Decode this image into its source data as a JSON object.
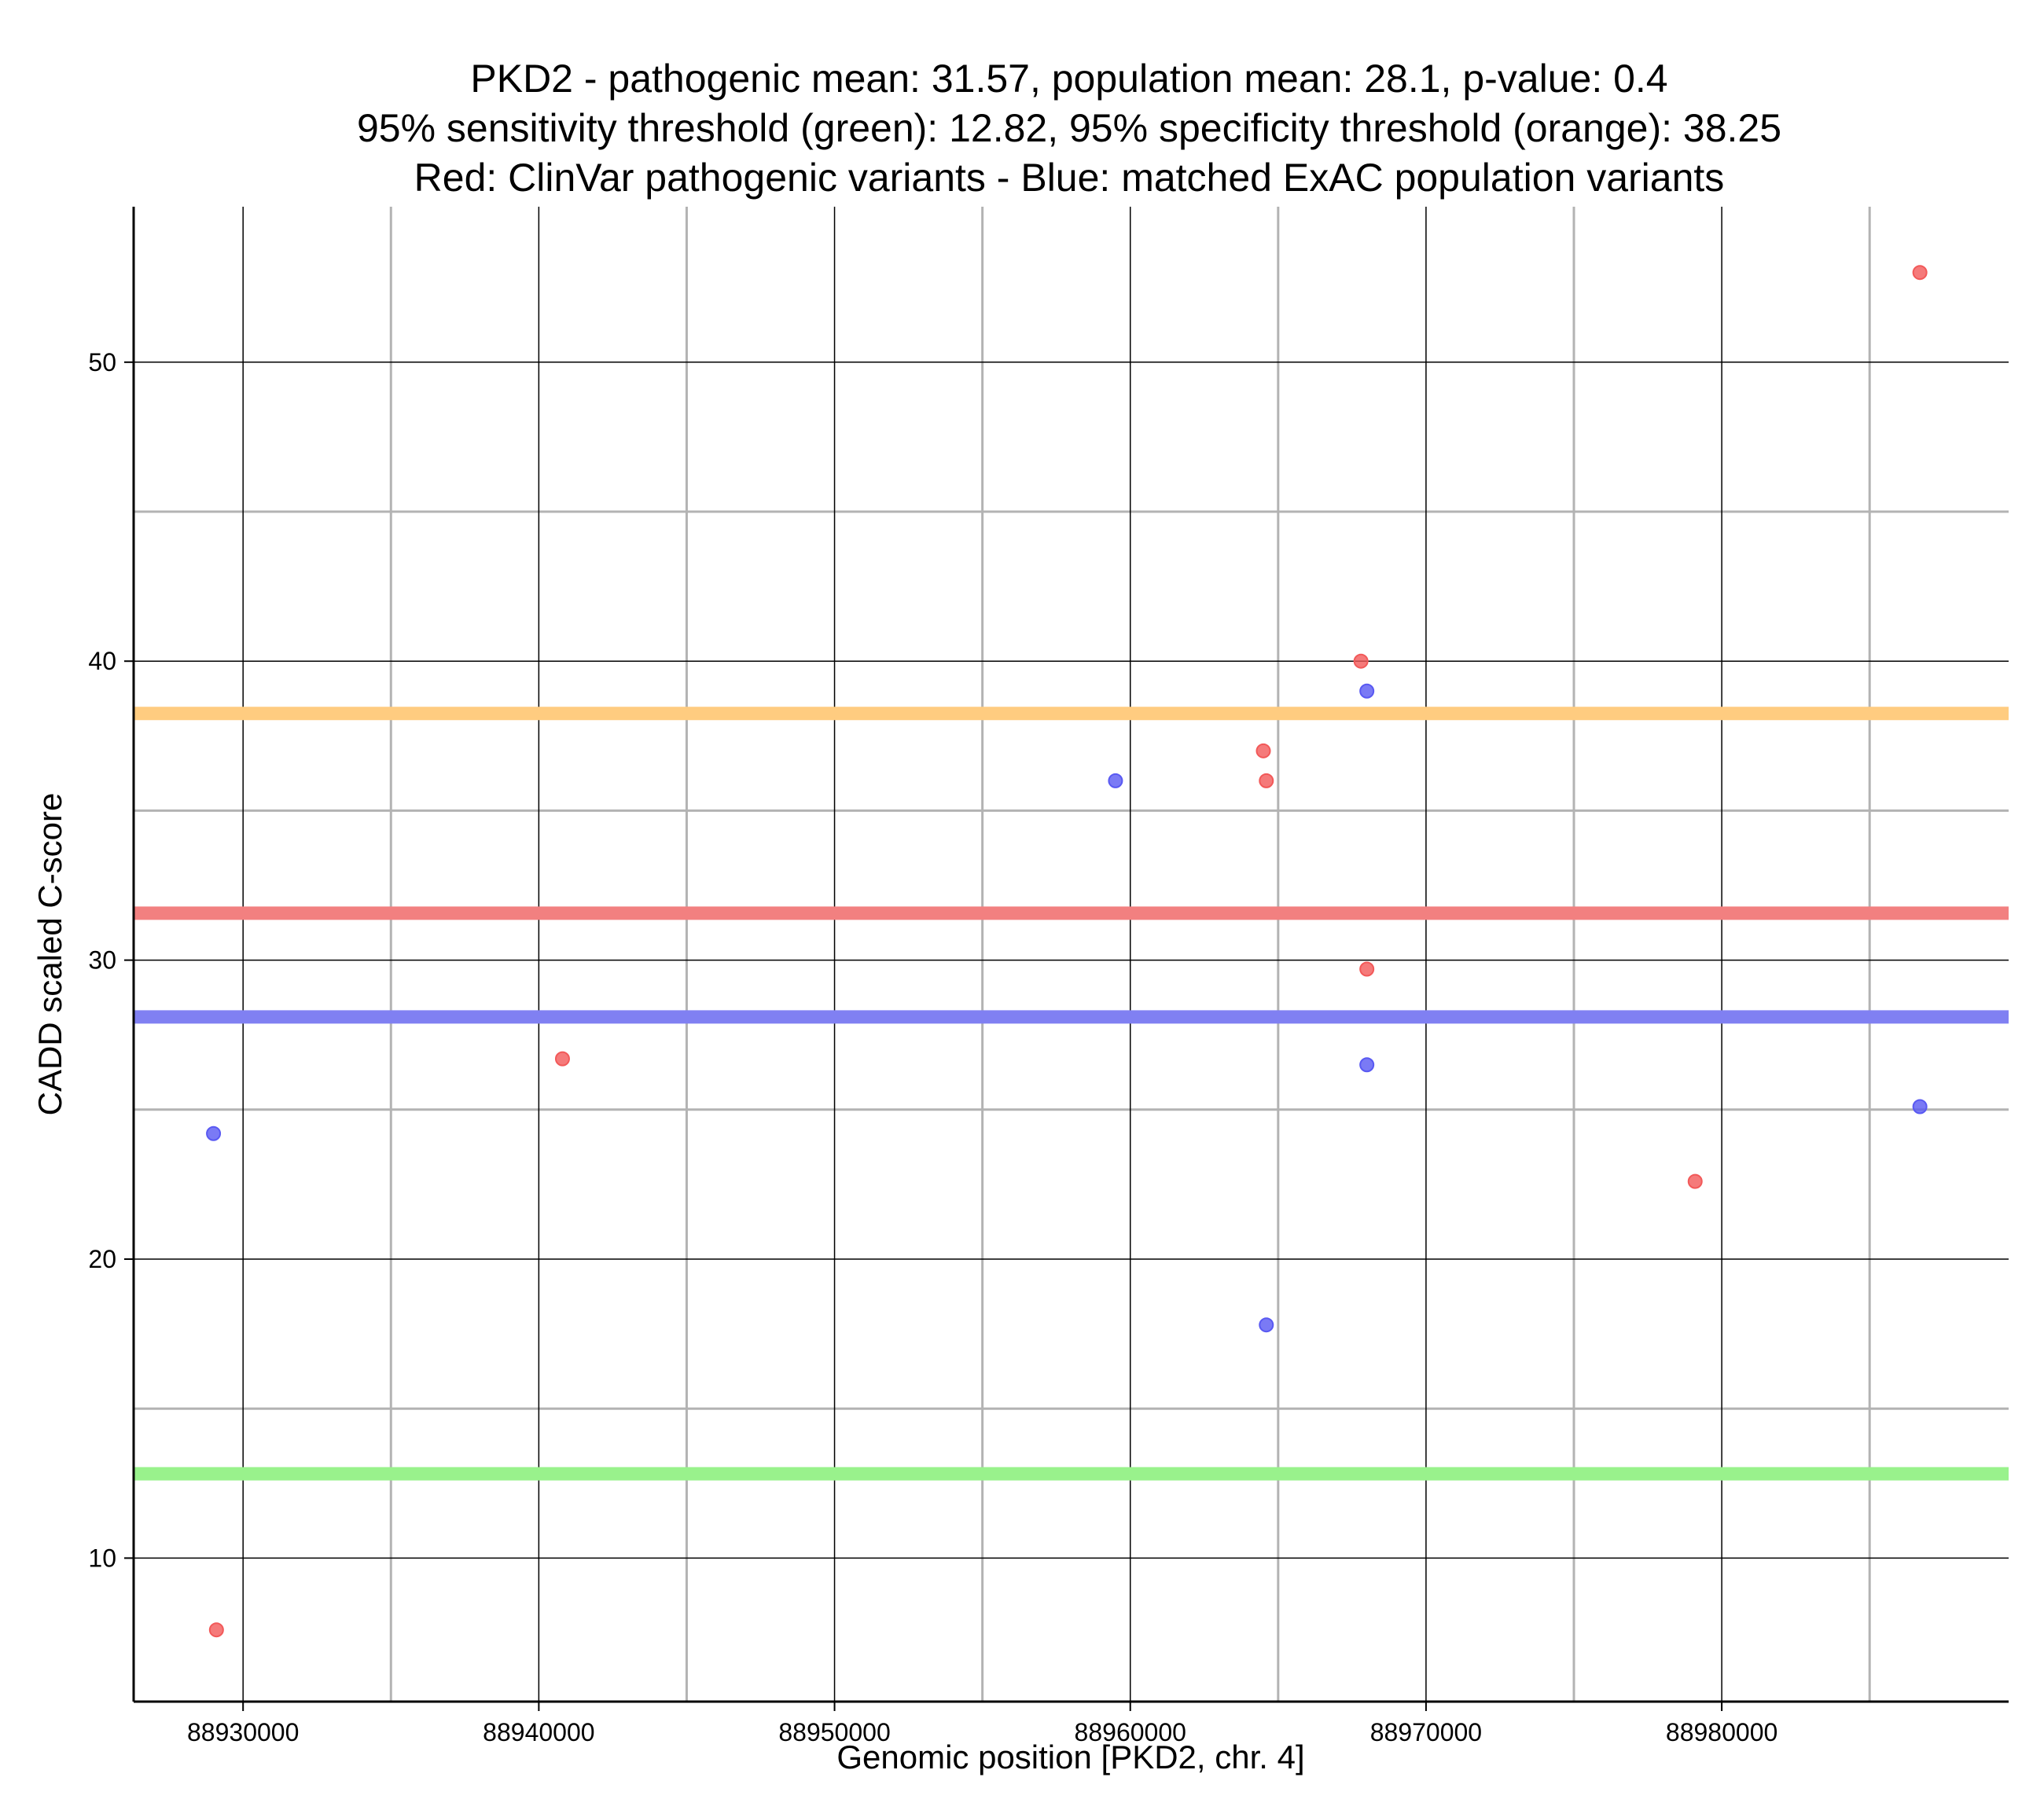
{
  "chart_data": {
    "type": "scatter",
    "title_lines": [
      "PKD2 - pathogenic mean: 31.57, population mean: 28.1, p-value: 0.4",
      "95% sensitivity threshold (green): 12.82, 95% specificity threshold (orange): 38.25",
      "Red: ClinVar pathogenic variants - Blue: matched ExAC population variants"
    ],
    "xlabel": "Genomic position [PKD2, chr. 4]",
    "ylabel": "CADD scaled C-score",
    "xlim": [
      88926300,
      88989700
    ],
    "ylim": [
      5.2,
      55.2
    ],
    "x_major_ticks": [
      88930000,
      88940000,
      88950000,
      88960000,
      88970000,
      88980000
    ],
    "x_tick_labels": [
      "88930000",
      "88940000",
      "88950000",
      "88960000",
      "88970000",
      "88980000"
    ],
    "x_minor_ticks": [
      88935000,
      88945000,
      88955000,
      88965000,
      88975000,
      88985000
    ],
    "y_major_ticks": [
      10,
      20,
      30,
      40,
      50
    ],
    "y_tick_labels": [
      "10",
      "20",
      "30",
      "40",
      "50"
    ],
    "y_minor_ticks": [
      15,
      25,
      35,
      45
    ],
    "hlines": [
      {
        "name": "specificity-threshold",
        "value": 38.25,
        "color": "#ffcc80"
      },
      {
        "name": "pathogenic-mean",
        "value": 31.57,
        "color": "#f28080"
      },
      {
        "name": "population-mean",
        "value": 28.1,
        "color": "#8080f2"
      },
      {
        "name": "sensitivity-threshold",
        "value": 12.82,
        "color": "#99f28c"
      }
    ],
    "series": [
      {
        "name": "ClinVar pathogenic variants",
        "color": "#f25959",
        "points": [
          {
            "x": 88929100,
            "y": 7.6
          },
          {
            "x": 88940800,
            "y": 26.7
          },
          {
            "x": 88964500,
            "y": 37.0
          },
          {
            "x": 88964600,
            "y": 36.0
          },
          {
            "x": 88967800,
            "y": 40.0
          },
          {
            "x": 88968000,
            "y": 29.7
          },
          {
            "x": 88979100,
            "y": 22.6
          },
          {
            "x": 88986700,
            "y": 53.0
          }
        ]
      },
      {
        "name": "matched ExAC population variants",
        "color": "#5959f2",
        "points": [
          {
            "x": 88929000,
            "y": 24.2
          },
          {
            "x": 88959500,
            "y": 36.0
          },
          {
            "x": 88964600,
            "y": 17.8
          },
          {
            "x": 88968000,
            "y": 39.0
          },
          {
            "x": 88968000,
            "y": 26.5
          },
          {
            "x": 88986700,
            "y": 25.1
          }
        ]
      }
    ]
  }
}
